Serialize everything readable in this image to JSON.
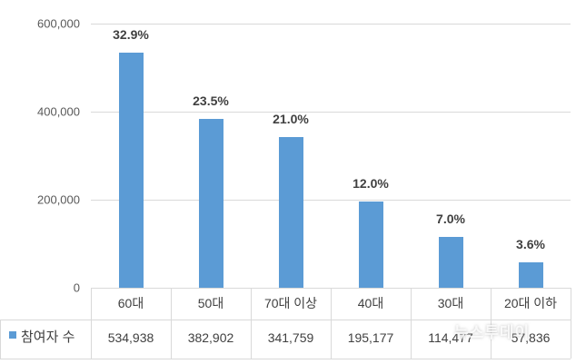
{
  "chart_data": {
    "type": "bar",
    "title": "",
    "xlabel": "",
    "ylabel": "",
    "categories": [
      "60대",
      "50대",
      "70대 이상",
      "40대",
      "30대",
      "20대 이하"
    ],
    "series": [
      {
        "name": "참여자 수",
        "values": [
          534938,
          382902,
          341759,
          195177,
          114477,
          57836
        ],
        "color": "#5b9bd5"
      }
    ],
    "data_labels": [
      "32.9%",
      "23.5%",
      "21.0%",
      "12.0%",
      "7.0%",
      "3.6%"
    ],
    "yticks": [
      "0",
      "200,000",
      "400,000",
      "600,000"
    ],
    "ylim": [
      0,
      600000
    ],
    "grid": true,
    "legend_position": "data-table-left",
    "data_table": {
      "series_label": "참여자 수",
      "values": [
        "534,938",
        "382,902",
        "341,759",
        "195,177",
        "114,477",
        "57,836"
      ]
    }
  },
  "watermark": "뉴스투데이"
}
